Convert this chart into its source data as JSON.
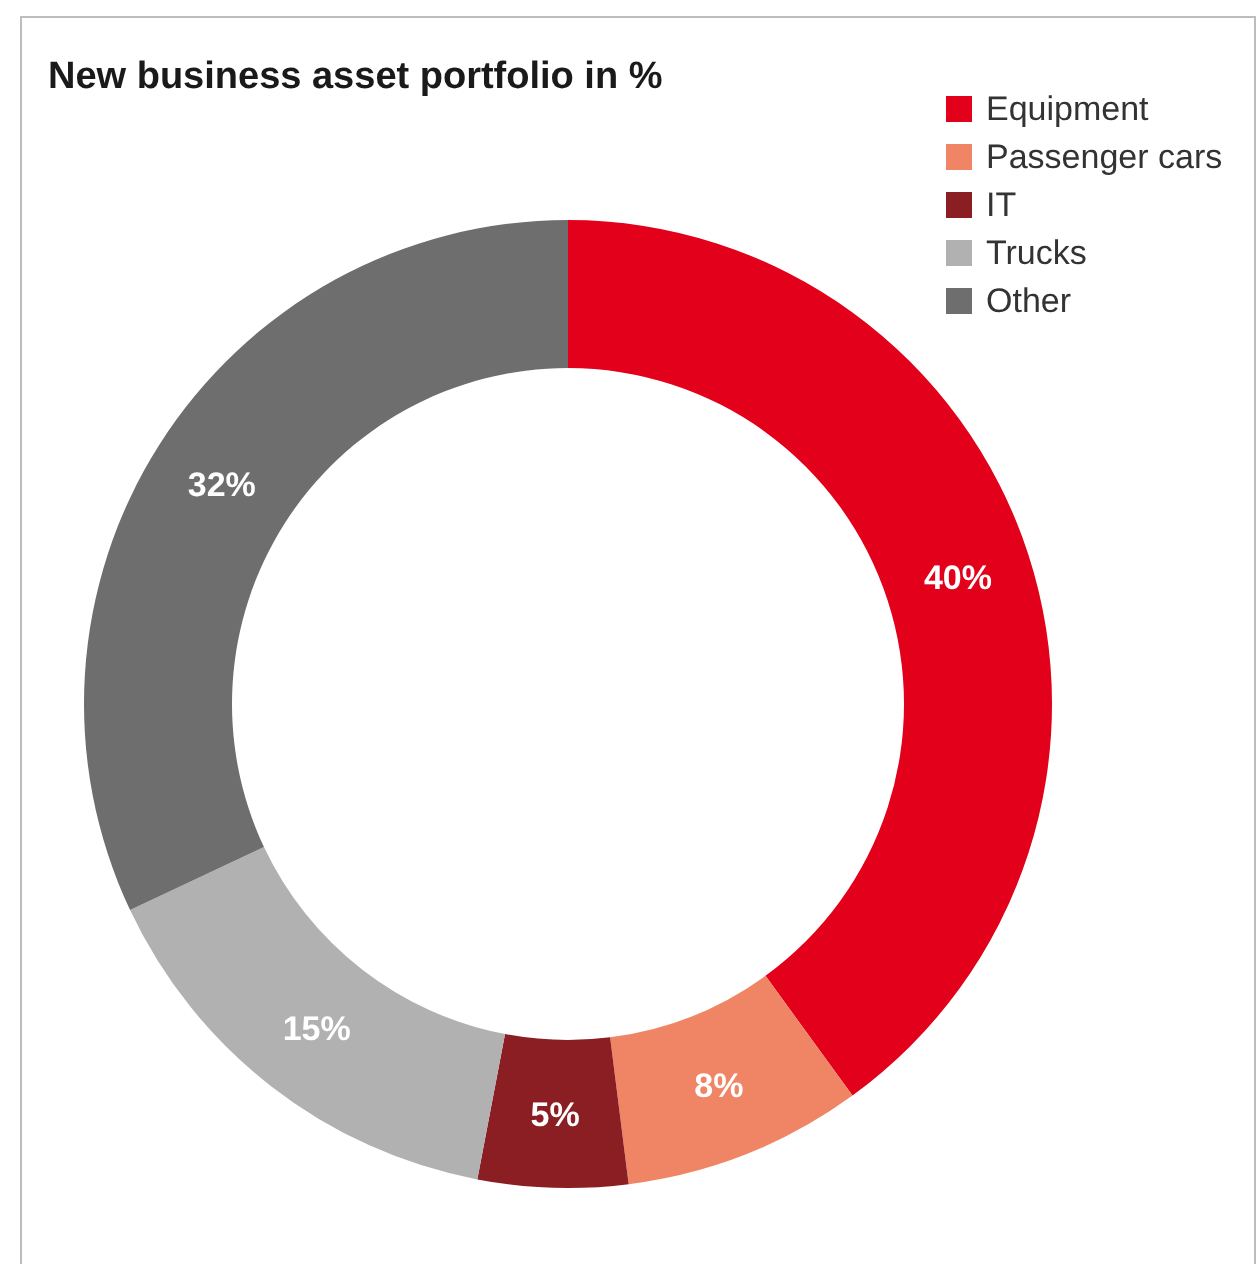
{
  "chart_data": {
    "type": "donut",
    "title": "New business asset portfolio in %",
    "categories": [
      "Equipment",
      "Passenger cars",
      "IT",
      "Trucks",
      "Other"
    ],
    "values": [
      40,
      8,
      5,
      15,
      32
    ],
    "colors": [
      "#e2001a",
      "#f08565",
      "#8b1e22",
      "#b1b1b1",
      "#6e6e6e"
    ],
    "value_labels": [
      "40%",
      "8%",
      "5%",
      "15%",
      "32%"
    ],
    "legend": "top right"
  }
}
